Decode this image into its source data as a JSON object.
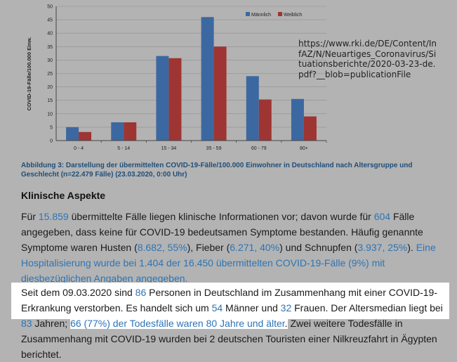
{
  "chart_data": {
    "type": "bar",
    "categories": [
      "0 - 4",
      "5 - 14",
      "15 - 34",
      "35 - 59",
      "60 - 79",
      "80+"
    ],
    "series": [
      {
        "name": "Männlich",
        "color": "#3c68a1",
        "values": [
          5,
          6.8,
          31.5,
          46,
          24,
          15.5
        ]
      },
      {
        "name": "Weiblich",
        "color": "#9e3533",
        "values": [
          3.2,
          6.8,
          30.7,
          35,
          15.3,
          9
        ]
      }
    ],
    "ylabel": "COVID-19-Fälle/100.000 Einw.",
    "ylim": [
      0,
      50
    ],
    "yticks": [
      0,
      5,
      10,
      15,
      20,
      25,
      30,
      35,
      40,
      45,
      50
    ],
    "legend": "top-right"
  },
  "url_note": "https://www.rki.de/DE/Content/InfAZ/N/Neuartiges_Coronavirus/Situationsberichte/2020-03-23-de.pdf?__blob=publicationFile",
  "caption": "Abbildung 3: Darstellung der übermittelten COVID-19-Fälle/100.000 Einwohner in Deutschland nach Altersgruppe und Geschlecht (n=22.479 Fälle) (23.03.2020, 0:00 Uhr)",
  "section_title": "Klinische Aspekte",
  "para1": {
    "t1": "Für ",
    "n_cases": "15.859",
    "t2": " übermittelte Fälle liegen klinische Informationen vor; davon wurde für ",
    "n_nosym": "604",
    "t3": " Fälle angegeben, dass keine für COVID-19 bedeutsamen Symptome bestanden. Häufig genannte Symptome waren Husten (",
    "cough": "8.682, 55%",
    "t4": "), Fieber (",
    "fever": "6.271, 40%",
    "t5": ") und Schnupfen (",
    "cold": "3.937, 25%",
    "t6": "). ",
    "hosp": "Eine Hospitalisierung wurde bei 1.404 der 16.450 übermittelten COVID-19-Fälle (9%) mit diesbezüglichen Angaben angegeben."
  },
  "para2": {
    "t1": "Seit dem 09.03.2020 sind ",
    "deaths": "86",
    "t2": " Personen in Deutschland im Zusammenhang mit einer COVID-19-Erkrankung verstorben. Es handelt sich um ",
    "men": "54",
    "t3": " Männer und ",
    "women": "32",
    "t4": " Frauen. Der Altersmedian liegt bei ",
    "median": "83",
    "t5": " Jahren; ",
    "over80": "66 (77%) der Todesfälle waren 80 Jahre und älter",
    "t6": ".",
    "t7": " Zwei weitere Todesfälle in Zusammenhang mit COVID-19 wurden bei 2 deutschen Touristen einer Nilkreuzfahrt in Ägypten berichtet."
  }
}
